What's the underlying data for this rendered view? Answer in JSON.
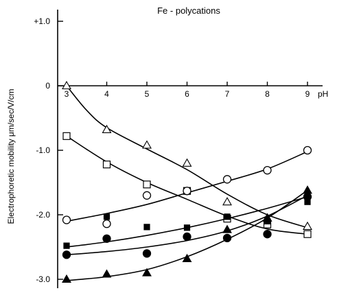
{
  "chart_data": {
    "type": "scatter",
    "title": "Fe - polycations",
    "xlabel": "pH",
    "ylabel": "Electrophoretic  mobility  μm/sec/V/cm",
    "xlim": [
      3,
      9
    ],
    "ylim": [
      -3.1,
      1.1
    ],
    "x_ticks": [
      "3",
      "4",
      "5",
      "6",
      "7",
      "8",
      "9"
    ],
    "y_ticks": [
      "+1.0",
      "0",
      "-1.0",
      "-2.0",
      "-3.0"
    ],
    "y_tick_values": [
      1.0,
      0,
      -1.0,
      -2.0,
      -3.0
    ],
    "grid": false,
    "legend": "none",
    "series": [
      {
        "marker": "open-triangle",
        "points": [
          [
            3,
            0.0
          ],
          [
            4,
            -0.68
          ],
          [
            5,
            -0.92
          ],
          [
            6,
            -1.2
          ],
          [
            7,
            -1.8
          ],
          [
            8,
            -2.05
          ],
          [
            9,
            -2.18
          ]
        ],
        "curve": [
          [
            3,
            0.0
          ],
          [
            3.5,
            -0.38
          ],
          [
            4,
            -0.65
          ],
          [
            5,
            -0.98
          ],
          [
            6,
            -1.3
          ],
          [
            7,
            -1.68
          ],
          [
            8,
            -2.0
          ],
          [
            9,
            -2.2
          ]
        ]
      },
      {
        "marker": "open-square",
        "points": [
          [
            3,
            -0.78
          ],
          [
            4,
            -1.22
          ],
          [
            5,
            -1.53
          ],
          [
            6,
            -1.63
          ],
          [
            7,
            -2.06
          ],
          [
            8,
            -2.15
          ],
          [
            9,
            -2.3
          ]
        ],
        "curve": [
          [
            3,
            -0.78
          ],
          [
            4,
            -1.18
          ],
          [
            5,
            -1.5
          ],
          [
            6,
            -1.76
          ],
          [
            7,
            -2.02
          ],
          [
            8,
            -2.22
          ],
          [
            9,
            -2.3
          ]
        ]
      },
      {
        "marker": "open-circle",
        "points": [
          [
            3,
            -2.08
          ],
          [
            4,
            -2.14
          ],
          [
            5,
            -1.7
          ],
          [
            6,
            -1.63
          ],
          [
            7,
            -1.45
          ],
          [
            8,
            -1.31
          ],
          [
            9,
            -1.0
          ]
        ],
        "curve": [
          [
            3,
            -2.1
          ],
          [
            4,
            -1.98
          ],
          [
            5,
            -1.84
          ],
          [
            6,
            -1.66
          ],
          [
            7,
            -1.48
          ],
          [
            8,
            -1.29
          ],
          [
            9,
            -1.02
          ]
        ]
      },
      {
        "marker": "filled-square",
        "points": [
          [
            3,
            -2.48
          ],
          [
            4,
            -2.03
          ],
          [
            5,
            -2.19
          ],
          [
            6,
            -2.2
          ],
          [
            7,
            -2.03
          ],
          [
            8,
            -2.1
          ],
          [
            9,
            -1.8
          ]
        ],
        "curve": [
          [
            3,
            -2.5
          ],
          [
            4,
            -2.42
          ],
          [
            5,
            -2.32
          ],
          [
            6,
            -2.2
          ],
          [
            7,
            -2.06
          ],
          [
            8,
            -1.9
          ],
          [
            9,
            -1.72
          ]
        ]
      },
      {
        "marker": "filled-circle",
        "points": [
          [
            3,
            -2.62
          ],
          [
            4,
            -2.37
          ],
          [
            5,
            -2.6
          ],
          [
            6,
            -2.34
          ],
          [
            7,
            -2.36
          ],
          [
            8,
            -2.3
          ],
          [
            9,
            -1.72
          ]
        ],
        "curve": [
          [
            3,
            -2.62
          ],
          [
            4,
            -2.57
          ],
          [
            5,
            -2.5
          ],
          [
            6,
            -2.4
          ],
          [
            7,
            -2.25
          ],
          [
            8,
            -2.02
          ],
          [
            9,
            -1.7
          ]
        ]
      },
      {
        "marker": "filled-triangle",
        "points": [
          [
            3,
            -3.0
          ],
          [
            4,
            -2.92
          ],
          [
            5,
            -2.9
          ],
          [
            6,
            -2.68
          ],
          [
            7,
            -2.23
          ],
          [
            8,
            -2.05
          ],
          [
            9,
            -1.62
          ]
        ],
        "curve": [
          [
            3,
            -3.02
          ],
          [
            4,
            -2.96
          ],
          [
            5,
            -2.85
          ],
          [
            6,
            -2.65
          ],
          [
            7,
            -2.38
          ],
          [
            8,
            -2.05
          ],
          [
            9,
            -1.62
          ]
        ]
      }
    ]
  }
}
